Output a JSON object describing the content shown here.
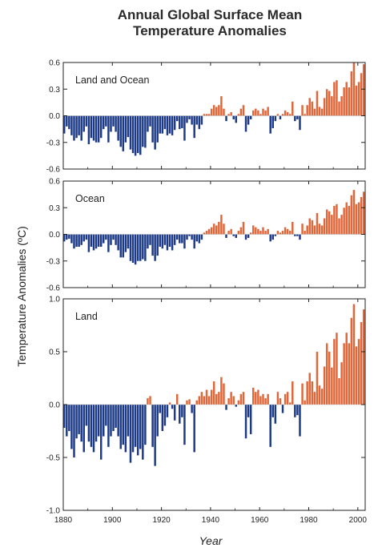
{
  "figure": {
    "title_line1": "Annual Global Surface Mean",
    "title_line2": "Temperature Anomalies",
    "ylabel": "Temperature Anomalies (ºC)",
    "xlabel": "Year"
  },
  "colors": {
    "positive": "#e0673a",
    "negative": "#1c3a86",
    "zero_line": "#b8b8b8",
    "frame": "#222222"
  },
  "chart_data": [
    {
      "type": "bar",
      "label": "Land and Ocean",
      "ylim": [
        -0.6,
        0.6
      ],
      "yticks": [
        -0.6,
        -0.3,
        0.0,
        0.3,
        0.6
      ],
      "ytick_labels": [
        "-0.6",
        "-0.3",
        "0.0",
        "0.3",
        "0.6"
      ],
      "xlim": [
        1880,
        2003
      ],
      "x_start": 1880,
      "values": [
        -0.2,
        -0.12,
        -0.15,
        -0.22,
        -0.28,
        -0.25,
        -0.22,
        -0.28,
        -0.18,
        -0.12,
        -0.32,
        -0.25,
        -0.28,
        -0.3,
        -0.3,
        -0.25,
        -0.15,
        -0.12,
        -0.3,
        -0.18,
        -0.12,
        -0.18,
        -0.28,
        -0.35,
        -0.4,
        -0.3,
        -0.24,
        -0.38,
        -0.42,
        -0.45,
        -0.42,
        -0.44,
        -0.35,
        -0.36,
        -0.18,
        -0.12,
        -0.3,
        -0.38,
        -0.3,
        -0.2,
        -0.2,
        -0.15,
        -0.22,
        -0.2,
        -0.22,
        -0.16,
        -0.06,
        -0.15,
        -0.14,
        -0.28,
        -0.08,
        -0.04,
        -0.1,
        -0.25,
        -0.1,
        -0.15,
        -0.1,
        0.02,
        0.02,
        0.02,
        0.08,
        0.12,
        0.1,
        0.12,
        0.22,
        0.08,
        -0.06,
        0.02,
        0.04,
        -0.04,
        -0.08,
        0.02,
        0.08,
        0.12,
        -0.18,
        -0.1,
        -0.04,
        0.06,
        0.08,
        0.06,
        0.02,
        0.08,
        0.06,
        0.1,
        -0.2,
        -0.14,
        -0.06,
        0.02,
        -0.04,
        0.02,
        0.06,
        0.04,
        0.02,
        0.16,
        -0.06,
        -0.04,
        -0.16,
        0.12,
        0.02,
        0.12,
        0.2,
        0.16,
        0.08,
        0.28,
        0.1,
        0.08,
        0.2,
        0.3,
        0.28,
        0.22,
        0.38,
        0.4,
        0.16,
        0.22,
        0.32,
        0.38,
        0.32,
        0.5,
        0.6,
        0.34,
        0.38,
        0.48,
        0.58
      ]
    },
    {
      "type": "bar",
      "label": "Ocean",
      "ylim": [
        -0.6,
        0.6
      ],
      "yticks": [
        -0.6,
        -0.3,
        0.0,
        0.3,
        0.6
      ],
      "ytick_labels": [
        "-0.6",
        "-0.3",
        "0.0",
        "0.3",
        "0.6"
      ],
      "xlim": [
        1880,
        2003
      ],
      "x_start": 1880,
      "values": [
        -0.08,
        -0.06,
        -0.05,
        -0.1,
        -0.16,
        -0.14,
        -0.14,
        -0.12,
        -0.08,
        -0.06,
        -0.2,
        -0.14,
        -0.18,
        -0.16,
        -0.14,
        -0.14,
        -0.1,
        -0.06,
        -0.2,
        -0.12,
        -0.06,
        -0.12,
        -0.18,
        -0.26,
        -0.26,
        -0.2,
        -0.16,
        -0.3,
        -0.32,
        -0.34,
        -0.3,
        -0.3,
        -0.28,
        -0.3,
        -0.16,
        -0.12,
        -0.24,
        -0.3,
        -0.24,
        -0.14,
        -0.16,
        -0.12,
        -0.18,
        -0.14,
        -0.18,
        -0.12,
        -0.06,
        -0.1,
        -0.1,
        -0.16,
        -0.06,
        -0.02,
        -0.06,
        -0.16,
        -0.08,
        -0.1,
        -0.06,
        0.02,
        0.04,
        0.06,
        0.08,
        0.12,
        0.1,
        0.14,
        0.22,
        0.12,
        -0.04,
        0.04,
        0.06,
        -0.02,
        -0.04,
        0.04,
        0.08,
        0.14,
        -0.06,
        -0.04,
        0.02,
        0.1,
        0.08,
        0.06,
        0.04,
        0.08,
        0.04,
        0.06,
        -0.08,
        -0.06,
        -0.02,
        0.04,
        0.02,
        0.04,
        0.08,
        0.06,
        0.04,
        0.14,
        -0.02,
        -0.02,
        -0.06,
        0.12,
        0.04,
        0.1,
        0.18,
        0.16,
        0.1,
        0.24,
        0.12,
        0.1,
        0.18,
        0.28,
        0.26,
        0.22,
        0.32,
        0.34,
        0.18,
        0.22,
        0.3,
        0.36,
        0.32,
        0.44,
        0.5,
        0.34,
        0.36,
        0.42,
        0.48
      ]
    },
    {
      "type": "bar",
      "label": "Land",
      "ylim": [
        -1.0,
        1.0
      ],
      "yticks": [
        -1.0,
        -0.5,
        0.0,
        0.5,
        1.0
      ],
      "ytick_labels": [
        "-1.0",
        "-0.5",
        "0.0",
        "0.5",
        "1.0"
      ],
      "xlim": [
        1880,
        2003
      ],
      "x_start": 1880,
      "values": [
        -0.22,
        -0.3,
        -0.25,
        -0.42,
        -0.5,
        -0.32,
        -0.28,
        -0.35,
        -0.45,
        -0.2,
        -0.35,
        -0.4,
        -0.45,
        -0.35,
        -0.3,
        -0.52,
        -0.3,
        -0.2,
        -0.4,
        -0.3,
        -0.25,
        -0.22,
        -0.3,
        -0.42,
        -0.38,
        -0.45,
        -0.3,
        -0.55,
        -0.45,
        -0.4,
        -0.48,
        -0.42,
        -0.52,
        -0.38,
        0.06,
        0.08,
        -0.4,
        -0.58,
        -0.3,
        -0.08,
        -0.25,
        -0.2,
        -0.12,
        0.02,
        -0.04,
        -0.15,
        0.1,
        -0.18,
        -0.12,
        -0.38,
        0.04,
        0.05,
        -0.08,
        -0.45,
        0.04,
        0.08,
        0.12,
        0.08,
        0.14,
        0.08,
        0.14,
        0.22,
        0.1,
        0.12,
        0.26,
        0.2,
        -0.05,
        0.06,
        0.12,
        0.08,
        -0.02,
        0.04,
        0.1,
        0.12,
        -0.32,
        -0.12,
        -0.28,
        0.16,
        0.12,
        0.14,
        0.08,
        0.1,
        0.06,
        0.1,
        -0.4,
        -0.12,
        -0.18,
        0.12,
        0.06,
        -0.08,
        0.1,
        0.12,
        0.02,
        0.22,
        -0.12,
        -0.1,
        -0.3,
        0.2,
        0.04,
        0.22,
        0.3,
        0.22,
        0.12,
        0.5,
        0.18,
        0.15,
        0.36,
        0.58,
        0.5,
        0.35,
        0.62,
        0.68,
        0.25,
        0.4,
        0.58,
        0.68,
        0.58,
        0.82,
        0.95,
        0.55,
        0.62,
        0.78,
        0.9
      ]
    }
  ],
  "x_axis": {
    "ticks": [
      1880,
      1900,
      1920,
      1940,
      1960,
      1980,
      2000
    ],
    "tick_labels": [
      "1880",
      "1900",
      "1920",
      "1940",
      "1960",
      "1980",
      "2000"
    ]
  }
}
